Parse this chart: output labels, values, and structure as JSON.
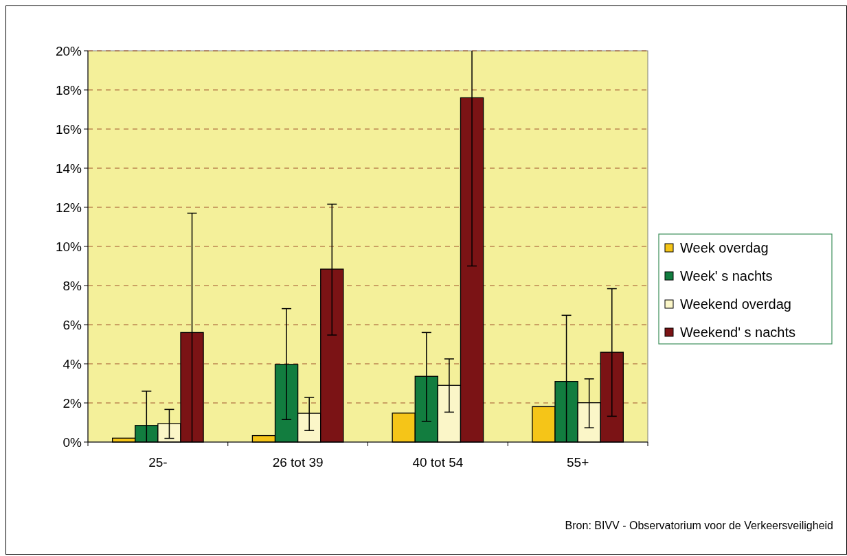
{
  "chart_data": {
    "type": "bar",
    "categories": [
      "25-",
      "26 tot 39",
      "40 tot 54",
      "55+"
    ],
    "series": [
      {
        "name": "Week overdag",
        "color": "#f5c518",
        "values": [
          0.2,
          0.33,
          1.48,
          1.81
        ]
      },
      {
        "name": "Week' s nachts",
        "color": "#127d3f",
        "values": [
          0.85,
          3.97,
          3.36,
          3.1
        ],
        "errors": [
          [
            0,
            2.6
          ],
          [
            1.15,
            6.82
          ],
          [
            1.06,
            5.6
          ],
          [
            0,
            6.48
          ]
        ]
      },
      {
        "name": "Weekend overdag",
        "color": "#fbf6c8",
        "values": [
          0.94,
          1.47,
          2.9,
          2.01
        ],
        "errors": [
          [
            0.19,
            1.67
          ],
          [
            0.59,
            2.28
          ],
          [
            1.53,
            4.25
          ],
          [
            0.73,
            3.23
          ]
        ]
      },
      {
        "name": "Weekend' s nachts",
        "color": "#7b1315",
        "values": [
          5.6,
          8.84,
          17.6,
          4.59
        ],
        "errors": [
          [
            0,
            11.7
          ],
          [
            5.47,
            12.16
          ],
          [
            9.0,
            20
          ],
          [
            1.32,
            7.84
          ]
        ]
      }
    ],
    "ylim": [
      0,
      20
    ],
    "yticks": [
      {
        "value": 0,
        "label": "0%"
      },
      {
        "value": 2,
        "label": "2%"
      },
      {
        "value": 4,
        "label": "4%"
      },
      {
        "value": 6,
        "label": "6%"
      },
      {
        "value": 8,
        "label": "8%"
      },
      {
        "value": 10,
        "label": "10%"
      },
      {
        "value": 12,
        "label": "12%"
      },
      {
        "value": 14,
        "label": "14%"
      },
      {
        "value": 16,
        "label": "16%"
      },
      {
        "value": 18,
        "label": "18%"
      },
      {
        "value": 20,
        "label": "20%"
      }
    ],
    "grid": "y",
    "legend": "right",
    "annotations": [
      "Bron: BIVV - Observatorium voor de Verkeersveiligheid"
    ]
  }
}
